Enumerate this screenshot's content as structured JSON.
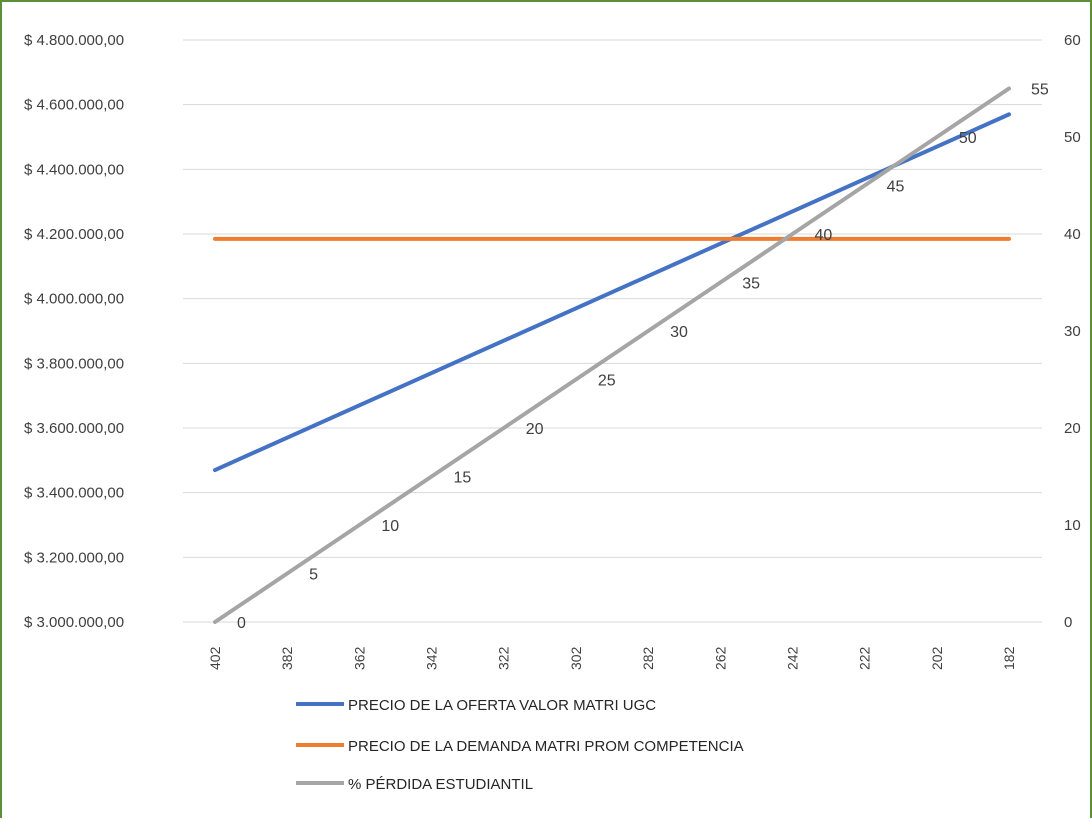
{
  "chart_data": {
    "type": "line",
    "categories": [
      "402",
      "382",
      "362",
      "342",
      "322",
      "302",
      "282",
      "262",
      "242",
      "222",
      "202",
      "182"
    ],
    "x_reversed": true,
    "y_left": {
      "min": 3000000,
      "max": 4800000,
      "step": 200000,
      "tick_labels": [
        "$ 3.000.000,00",
        "$ 3.200.000,00",
        "$ 3.400.000,00",
        "$ 3.600.000,00",
        "$ 3.800.000,00",
        "$ 4.000.000,00",
        "$ 4.200.000,00",
        "$ 4.400.000,00",
        "$ 4.600.000,00",
        "$ 4.800.000,00"
      ]
    },
    "y_right": {
      "min": 0,
      "max": 60,
      "step": 10,
      "tick_labels": [
        "0",
        "10",
        "20",
        "30",
        "40",
        "50",
        "60"
      ]
    },
    "grid": true,
    "legend_position": "bottom",
    "series": [
      {
        "name": "PRECIO DE LA OFERTA VALOR MATRI UGC",
        "color": "#4472c4",
        "axis": "left",
        "x": [
          402,
          182
        ],
        "values": [
          3470000,
          4570000
        ]
      },
      {
        "name": "PRECIO DE LA DEMANDA MATRI PROM COMPETENCIA",
        "color": "#ed7d31",
        "axis": "left",
        "x": [
          402,
          182
        ],
        "values": [
          4185000,
          4185000
        ]
      },
      {
        "name": "% PÉRDIDA ESTUDIANTIL",
        "color": "#a5a5a5",
        "axis": "right",
        "x": [
          402,
          382,
          362,
          342,
          322,
          302,
          282,
          262,
          242,
          222,
          202,
          182
        ],
        "values": [
          0,
          5,
          10,
          15,
          20,
          25,
          30,
          35,
          40,
          45,
          50,
          55
        ],
        "data_labels": [
          "0",
          "5",
          "10",
          "15",
          "20",
          "25",
          "30",
          "35",
          "40",
          "45",
          "50",
          "55"
        ]
      }
    ]
  }
}
